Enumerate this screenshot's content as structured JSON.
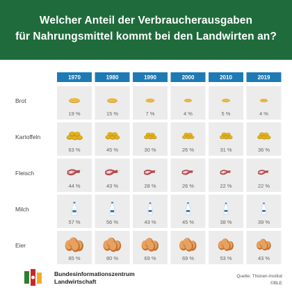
{
  "title": {
    "line1": "Welcher Anteil der Verbraucherausgaben",
    "line2": "für Nahrungsmittel kommt bei den Landwirten an?"
  },
  "colors": {
    "header_bg": "#1f6b3c",
    "year_tab": "#1e7ab5",
    "cell_bg": "#ececec",
    "label": "#444444",
    "value": "#666666"
  },
  "chart_data": {
    "type": "table",
    "title": "Welcher Anteil der Verbraucherausgaben für Nahrungsmittel kommt bei den Landwirten an?",
    "categories": [
      "1970",
      "1980",
      "1990",
      "2000",
      "2010",
      "2019"
    ],
    "series": [
      {
        "name": "Brot",
        "icon": "bread-icon",
        "values": [
          19,
          15,
          7,
          4,
          5,
          4
        ]
      },
      {
        "name": "Kartoffeln",
        "icon": "potato-icon",
        "values": [
          63,
          45,
          30,
          26,
          31,
          36
        ]
      },
      {
        "name": "Fleisch",
        "icon": "meat-icon",
        "values": [
          44,
          43,
          28,
          26,
          22,
          22
        ]
      },
      {
        "name": "Milch",
        "icon": "milk-bottle-icon",
        "values": [
          57,
          56,
          43,
          45,
          38,
          39
        ]
      },
      {
        "name": "Eier",
        "icon": "egg-icon",
        "values": [
          85,
          80,
          69,
          69,
          53,
          43
        ]
      }
    ],
    "unit": "%"
  },
  "footer": {
    "org_line1": "Bundesinformationszentrum",
    "org_line2": "Landwirtschaft",
    "source_line1": "Quelle: Thünen-Institut",
    "source_line2": "©BLE"
  }
}
